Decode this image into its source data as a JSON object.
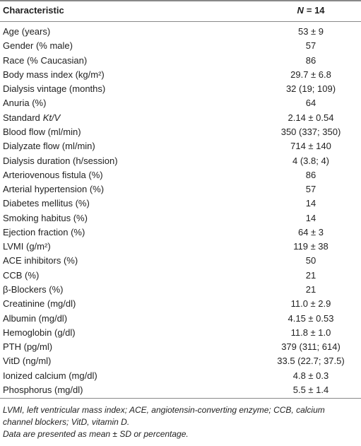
{
  "table": {
    "header": [
      "Characteristic",
      {
        "italic": "N",
        "text": "= 14"
      }
    ],
    "rows": [
      [
        "Age (years)",
        "53 ± 9"
      ],
      [
        "Gender (% male)",
        "57"
      ],
      [
        "Race (% Caucasian)",
        "86"
      ],
      [
        "Body mass index (kg/m²)",
        "29.7 ± 6.8"
      ],
      [
        "Dialysis vintage (months)",
        "32 (19; 109)"
      ],
      [
        "Anuria (%)",
        "64"
      ],
      [
        {
          "text": "Standard",
          "italic": "Kt/V"
        },
        "2.14 ± 0.54"
      ],
      [
        "Blood flow (ml/min)",
        "350 (337; 350)"
      ],
      [
        "Dialyzate flow (ml/min)",
        "714 ± 140"
      ],
      [
        "Dialysis duration (h/session)",
        "4 (3.8; 4)"
      ],
      [
        "Arteriovenous fistula (%)",
        "86"
      ],
      [
        "Arterial hypertension (%)",
        "57"
      ],
      [
        "Diabetes mellitus (%)",
        "14"
      ],
      [
        "Smoking habitus (%)",
        "14"
      ],
      [
        "Ejection fraction (%)",
        "64 ± 3"
      ],
      [
        "LVMI (g/m²)",
        "119 ± 38"
      ],
      [
        "ACE inhibitors (%)",
        "50"
      ],
      [
        "CCB (%)",
        "21"
      ],
      [
        "β-Blockers (%)",
        "21"
      ],
      [
        "Creatinine (mg/dl)",
        "11.0 ± 2.9"
      ],
      [
        "Albumin (mg/dl)",
        "4.15 ± 0.53"
      ],
      [
        "Hemoglobin (g/dl)",
        "11.8 ± 1.0"
      ],
      [
        "PTH (pg/ml)",
        "379 (311; 614)"
      ],
      [
        "VitD (ng/ml)",
        "33.5 (22.7; 37.5)"
      ],
      [
        "Ionized calcium (mg/dl)",
        "4.8 ± 0.3"
      ],
      [
        "Phosphorus (mg/dl)",
        "5.5 ± 1.4"
      ]
    ],
    "footnotes": [
      "LVMI, left ventricular mass index; ACE, angiotensin-converting enzyme; CCB, calcium",
      "channel blockers; VitD, vitamin D.",
      "Data are presented as mean ± SD or percentage."
    ]
  }
}
